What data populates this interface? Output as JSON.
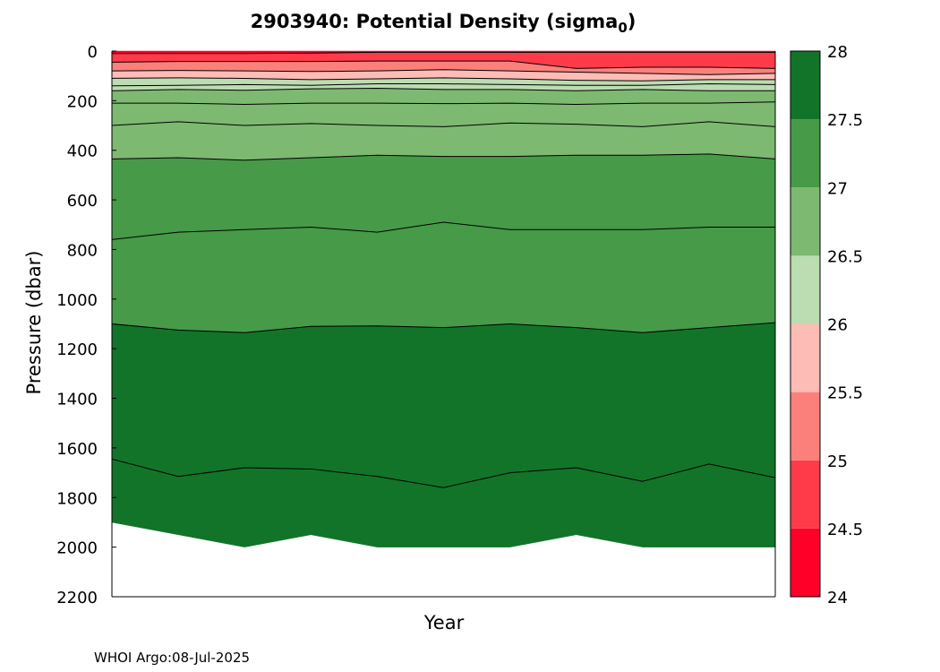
{
  "chart_data": {
    "type": "contour",
    "title": "2903940: Potential Density (sigma",
    "title_subscript": "0",
    "title_close": ")",
    "xlabel": "Year",
    "ylabel": "Pressure (dbar)",
    "ylim": [
      0,
      2200
    ],
    "y_reversed": true,
    "y_ticks": [
      "0",
      "200",
      "400",
      "600",
      "800",
      "1000",
      "1200",
      "1400",
      "1600",
      "1800",
      "2000",
      "2200"
    ],
    "y_tick_values": [
      0,
      200,
      400,
      600,
      800,
      1000,
      1200,
      1400,
      1600,
      1800,
      2000,
      2200
    ],
    "profiles": 11,
    "colorbar": {
      "levels": [
        24,
        24.5,
        25,
        25.5,
        26,
        26.5,
        27,
        27.5,
        28
      ],
      "tick_labels": [
        "28",
        "27.5",
        "27",
        "26.5",
        "26",
        "25.5",
        "25",
        "24.5",
        "24"
      ],
      "colors": [
        "#ff0028",
        "#ff3b4a",
        "#fb807b",
        "#fdbcb6",
        "#bcdcb1",
        "#7db971",
        "#469a48",
        "#127429"
      ]
    },
    "bottom_pressure": [
      1900,
      1950,
      2000,
      1950,
      2000,
      2000,
      2000,
      1950,
      2000,
      2000,
      2000
    ],
    "contours": [
      {
        "level": 26.0,
        "pressure": [
          160,
          155,
          158,
          152,
          150,
          155,
          155,
          160,
          155,
          160,
          160
        ]
      },
      {
        "level": 26.5,
        "pressure": [
          210,
          210,
          215,
          210,
          210,
          212,
          210,
          215,
          210,
          210,
          205
        ]
      },
      {
        "level": 27.0,
        "pressure": [
          300,
          285,
          300,
          292,
          300,
          305,
          290,
          295,
          305,
          285,
          305
        ]
      },
      {
        "level": 27.25,
        "pressure": [
          435,
          430,
          440,
          430,
          420,
          425,
          425,
          420,
          420,
          415,
          435
        ]
      },
      {
        "level": 27.5,
        "pressure": [
          760,
          730,
          720,
          710,
          730,
          690,
          720,
          720,
          720,
          710,
          710
        ]
      },
      {
        "level": 27.6,
        "pressure": [
          1100,
          1125,
          1135,
          1110,
          1108,
          1115,
          1100,
          1115,
          1135,
          1115,
          1095
        ]
      },
      {
        "level": 27.7,
        "pressure": [
          1645,
          1715,
          1680,
          1685,
          1715,
          1760,
          1700,
          1680,
          1735,
          1665,
          1720
        ]
      }
    ],
    "surface_contours": [
      {
        "level": 24.5,
        "pressure": [
          10,
          10,
          10,
          8,
          5,
          5,
          5,
          5,
          5,
          5,
          5
        ]
      },
      {
        "level": 25.0,
        "pressure": [
          45,
          42,
          42,
          42,
          40,
          40,
          40,
          70,
          65,
          65,
          70
        ]
      },
      {
        "level": 25.5,
        "pressure": [
          80,
          78,
          80,
          82,
          80,
          75,
          80,
          85,
          90,
          95,
          90
        ]
      },
      {
        "level": 26.0,
        "pressure": [
          110,
          108,
          110,
          115,
          112,
          108,
          112,
          118,
          120,
          115,
          115
        ]
      },
      {
        "level": 26.0,
        "pressure": [
          140,
          138,
          135,
          138,
          132,
          132,
          135,
          138,
          138,
          132,
          135
        ]
      }
    ]
  },
  "footer": "WHOI Argo:08-Jul-2025"
}
